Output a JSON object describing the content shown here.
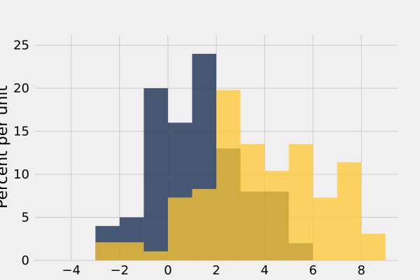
{
  "chart_data": {
    "type": "histogram",
    "title": "",
    "xlabel": "",
    "ylabel": "Percent per unit",
    "xlim": [
      -5.5,
      9.5
    ],
    "ylim": [
      0,
      27
    ],
    "grid": true,
    "xticks": [
      -4,
      -2,
      0,
      2,
      4,
      6,
      8
    ],
    "xtick_labels": [
      "−4",
      "−2",
      "0",
      "2",
      "4",
      "6",
      "8"
    ],
    "yticks": [
      0,
      5,
      10,
      15,
      20,
      25
    ],
    "ytick_labels": [
      "0",
      "5",
      "10",
      "15",
      "20",
      "25"
    ],
    "bins": [
      -3,
      -2,
      -1,
      0,
      1,
      2,
      3,
      4,
      5,
      6,
      7,
      8,
      9
    ],
    "series": [
      {
        "color": "#1b3155",
        "opacity": 0.8,
        "values": [
          4,
          5,
          20,
          16,
          24,
          13,
          8,
          8,
          2,
          0,
          0,
          0
        ]
      },
      {
        "color": "#ffc832",
        "opacity": 0.75,
        "values": [
          2.1,
          2.1,
          1.05,
          7.3,
          8.3,
          19.8,
          13.5,
          10.4,
          13.5,
          7.3,
          11.4,
          3.1
        ]
      }
    ]
  }
}
